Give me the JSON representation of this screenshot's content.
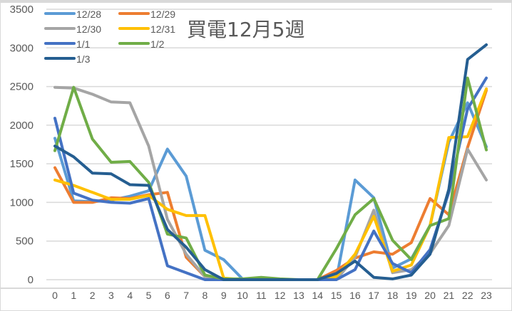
{
  "chart_data": {
    "type": "line",
    "title": "買電12月5週",
    "xlabel": "",
    "ylabel": "",
    "x": [
      0,
      1,
      2,
      3,
      4,
      5,
      6,
      7,
      8,
      9,
      10,
      11,
      12,
      13,
      14,
      15,
      16,
      17,
      18,
      19,
      20,
      21,
      22,
      23
    ],
    "ylim": [
      0,
      3500
    ],
    "yticks": [
      0,
      500,
      1000,
      1500,
      2000,
      2500,
      3000,
      3500
    ],
    "grid": true,
    "legend_position": "top-left",
    "series": [
      {
        "name": "12/28",
        "color": "#5B9BD5",
        "values": [
          1830,
          1020,
          1010,
          1030,
          1080,
          1150,
          1690,
          1340,
          380,
          260,
          10,
          0,
          0,
          0,
          0,
          0,
          1290,
          1060,
          150,
          270,
          700,
          1780,
          2290,
          1720
        ]
      },
      {
        "name": "12/29",
        "color": "#ED7D31",
        "values": [
          1450,
          1000,
          1000,
          1060,
          1050,
          1100,
          1130,
          290,
          40,
          0,
          0,
          0,
          0,
          0,
          0,
          120,
          280,
          360,
          330,
          480,
          1050,
          840,
          1710,
          2450
        ]
      },
      {
        "name": "12/30",
        "color": "#A5A5A5",
        "values": [
          2490,
          2480,
          2400,
          2300,
          2290,
          1730,
          780,
          330,
          40,
          0,
          0,
          0,
          0,
          0,
          0,
          0,
          290,
          900,
          90,
          130,
          340,
          700,
          1690,
          1290
        ]
      },
      {
        "name": "12/31",
        "color": "#FFC000",
        "values": [
          1290,
          1220,
          1130,
          1040,
          1040,
          1090,
          910,
          830,
          830,
          20,
          0,
          0,
          0,
          0,
          0,
          40,
          330,
          820,
          110,
          190,
          700,
          1840,
          1850,
          2470
        ]
      },
      {
        "name": "1/1",
        "color": "#4472C4",
        "values": [
          2090,
          1120,
          1030,
          1000,
          990,
          1050,
          180,
          90,
          0,
          0,
          0,
          0,
          0,
          0,
          0,
          0,
          130,
          630,
          210,
          90,
          390,
          1130,
          2210,
          2610
        ]
      },
      {
        "name": "1/2",
        "color": "#70AD47",
        "values": [
          1670,
          2490,
          1820,
          1520,
          1530,
          1260,
          590,
          540,
          60,
          10,
          10,
          30,
          10,
          0,
          0,
          400,
          840,
          1050,
          510,
          260,
          700,
          790,
          2610,
          1680
        ]
      },
      {
        "name": "1/3",
        "color": "#255E91",
        "values": [
          1730,
          1590,
          1380,
          1370,
          1230,
          1220,
          650,
          420,
          130,
          0,
          0,
          0,
          0,
          0,
          0,
          80,
          240,
          30,
          10,
          60,
          330,
          1170,
          2850,
          3040
        ]
      }
    ]
  },
  "legend": {
    "items": [
      {
        "label": "12/28"
      },
      {
        "label": "12/29"
      },
      {
        "label": "12/30"
      },
      {
        "label": "12/31"
      },
      {
        "label": "1/1"
      },
      {
        "label": "1/2"
      },
      {
        "label": "1/3"
      }
    ]
  }
}
